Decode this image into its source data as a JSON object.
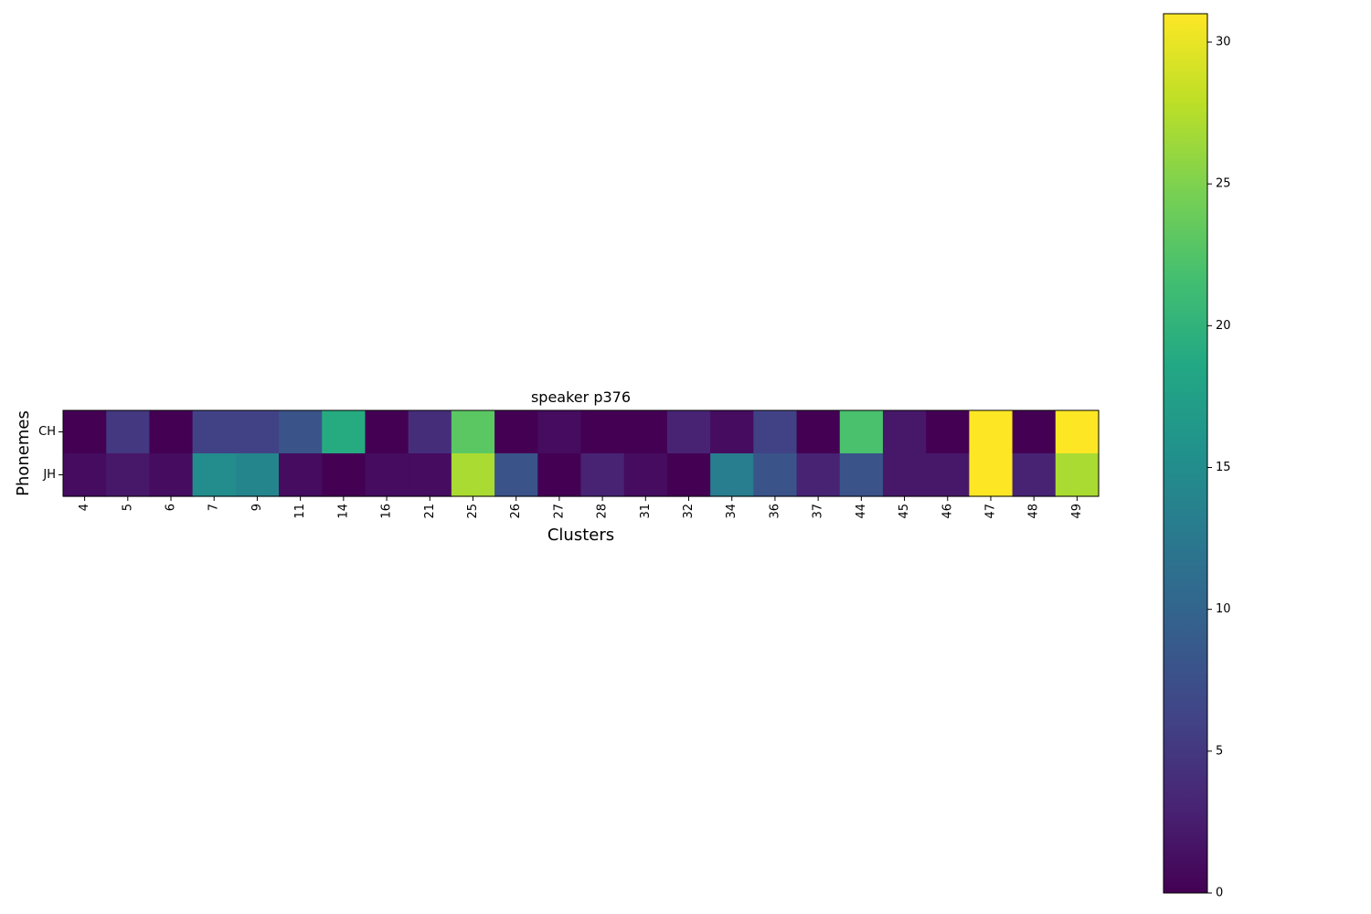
{
  "chart_data": {
    "type": "heatmap",
    "title": "speaker p376",
    "xlabel": "Clusters",
    "ylabel": "Phonemes",
    "x_categories": [
      "4",
      "5",
      "6",
      "7",
      "9",
      "11",
      "14",
      "16",
      "21",
      "25",
      "26",
      "27",
      "28",
      "31",
      "32",
      "34",
      "36",
      "37",
      "44",
      "45",
      "46",
      "47",
      "48",
      "49"
    ],
    "y_categories": [
      "CH",
      "JH"
    ],
    "values": [
      [
        0,
        5,
        0,
        6,
        6,
        8,
        19,
        0,
        4,
        23,
        0,
        1,
        0,
        0,
        3,
        1,
        6,
        0,
        22,
        2,
        0,
        31,
        0,
        31
      ],
      [
        1,
        2,
        1,
        15,
        14,
        1,
        0,
        1,
        1,
        27,
        8,
        0,
        3,
        1,
        0,
        13,
        8,
        3,
        8,
        2,
        2,
        31,
        3,
        27
      ]
    ],
    "colormap": "viridis",
    "colorbar": {
      "range": [
        0,
        31
      ],
      "ticks": [
        "0",
        "5",
        "10",
        "15",
        "20",
        "25",
        "30"
      ]
    },
    "grid": false
  }
}
